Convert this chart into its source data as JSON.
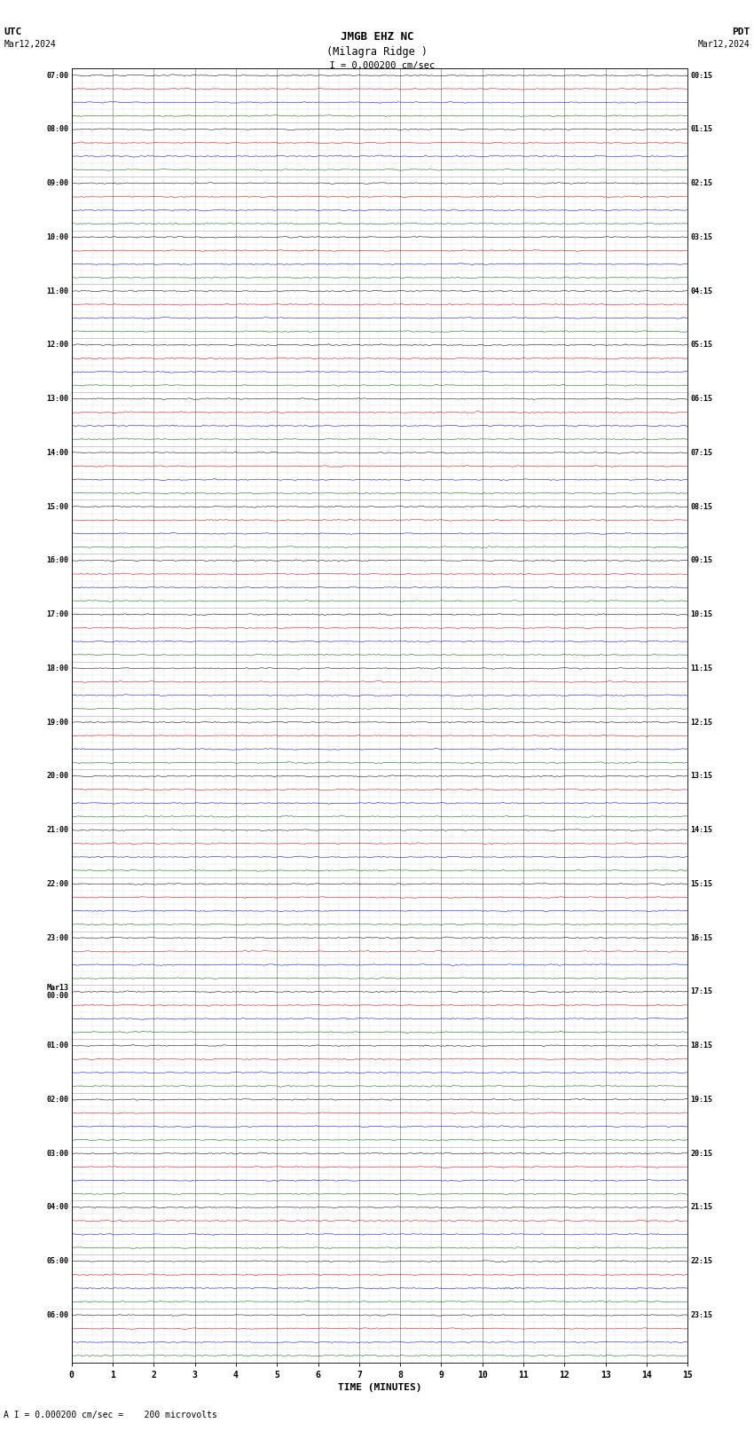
{
  "title_line1": "JMGB EHZ NC",
  "title_line2": "(Milagra Ridge )",
  "scale_label": "  I = 0.000200 cm/sec",
  "utc_label": "UTC",
  "utc_date": "Mar12,2024",
  "pdt_label": "PDT",
  "pdt_date": "Mar12,2024",
  "bottom_label": "A I = 0.000200 cm/sec =    200 microvolts",
  "xlabel": "TIME (MINUTES)",
  "xmin": 0,
  "xmax": 15,
  "xticks": [
    0,
    1,
    2,
    3,
    4,
    5,
    6,
    7,
    8,
    9,
    10,
    11,
    12,
    13,
    14,
    15
  ],
  "num_traces": 96,
  "traces_per_hour": 4,
  "minutes_per_trace": 15,
  "bg_color": "#ffffff",
  "trace_color_black": "#000000",
  "trace_color_blue": "#0000cc",
  "trace_color_red": "#cc0000",
  "trace_color_green": "#006600",
  "grid_color_major": "#666666",
  "grid_color_minor": "#aaaaaa",
  "fig_width": 8.5,
  "fig_height": 16.13,
  "dpi": 100,
  "seed": 42,
  "left_labels_utc": [
    "07:00",
    "",
    "",
    "",
    "08:00",
    "",
    "",
    "",
    "09:00",
    "",
    "",
    "",
    "10:00",
    "",
    "",
    "",
    "11:00",
    "",
    "",
    "",
    "12:00",
    "",
    "",
    "",
    "13:00",
    "",
    "",
    "",
    "14:00",
    "",
    "",
    "",
    "15:00",
    "",
    "",
    "",
    "16:00",
    "",
    "",
    "",
    "17:00",
    "",
    "",
    "",
    "18:00",
    "",
    "",
    "",
    "19:00",
    "",
    "",
    "",
    "20:00",
    "",
    "",
    "",
    "21:00",
    "",
    "",
    "",
    "22:00",
    "",
    "",
    "",
    "23:00",
    "",
    "",
    "",
    "Mar13\n00:00",
    "",
    "",
    "",
    "01:00",
    "",
    "",
    "",
    "02:00",
    "",
    "",
    "",
    "03:00",
    "",
    "",
    "",
    "04:00",
    "",
    "",
    "",
    "05:00",
    "",
    "",
    "",
    "06:00",
    "",
    "",
    ""
  ],
  "right_labels_pdt": [
    "00:15",
    "",
    "",
    "",
    "01:15",
    "",
    "",
    "",
    "02:15",
    "",
    "",
    "",
    "03:15",
    "",
    "",
    "",
    "04:15",
    "",
    "",
    "",
    "05:15",
    "",
    "",
    "",
    "06:15",
    "",
    "",
    "",
    "07:15",
    "",
    "",
    "",
    "08:15",
    "",
    "",
    "",
    "09:15",
    "",
    "",
    "",
    "10:15",
    "",
    "",
    "",
    "11:15",
    "",
    "",
    "",
    "12:15",
    "",
    "",
    "",
    "13:15",
    "",
    "",
    "",
    "14:15",
    "",
    "",
    "",
    "15:15",
    "",
    "",
    "",
    "16:15",
    "",
    "",
    "",
    "17:15",
    "",
    "",
    "",
    "18:15",
    "",
    "",
    "",
    "19:15",
    "",
    "",
    "",
    "20:15",
    "",
    "",
    "",
    "21:15",
    "",
    "",
    "",
    "22:15",
    "",
    "",
    "",
    "23:15",
    "",
    "",
    ""
  ],
  "trace_colors_pattern": [
    "#000000",
    "#cc0000",
    "#0000cc",
    "#006600"
  ]
}
